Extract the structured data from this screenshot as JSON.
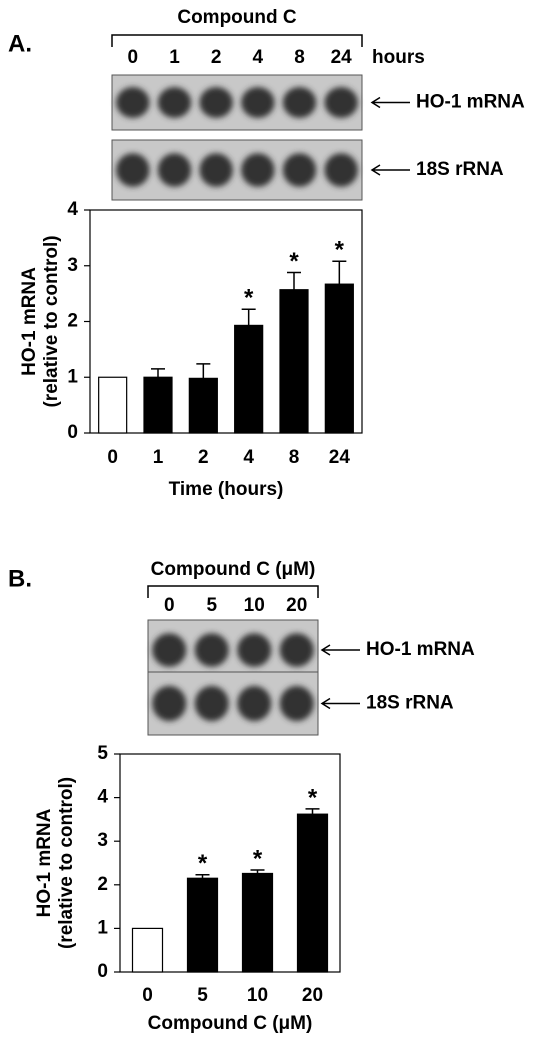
{
  "chart_data": [
    {
      "type": "bar",
      "panel_label": "A.",
      "ylabel": [
        "HO-1 mRNA",
        "(relative to control)"
      ],
      "xlabel": "Time (hours)",
      "categories": [
        "0",
        "1",
        "2",
        "4",
        "8",
        "24"
      ],
      "values": [
        1,
        1,
        0.98,
        1.93,
        2.57,
        2.67
      ],
      "errors": [
        null,
        0.15,
        0.26,
        0.29,
        0.31,
        0.41
      ],
      "markers": [
        null,
        null,
        null,
        "*",
        "*",
        "*"
      ],
      "colors": [
        "#ffffff",
        "#000000",
        "#000000",
        "#000000",
        "#000000",
        "#000000"
      ],
      "ylim": [
        0,
        4
      ],
      "yticks": [
        0,
        1,
        2,
        3,
        4
      ]
    },
    {
      "type": "bar",
      "panel_label": "B.",
      "ylabel": [
        "HO-1 mRNA",
        "(relative to control)"
      ],
      "xlabel": "Compound C (μM)",
      "categories": [
        "0",
        "5",
        "10",
        "20"
      ],
      "values": [
        1,
        2.15,
        2.26,
        3.62
      ],
      "errors": [
        null,
        0.08,
        0.08,
        0.12
      ],
      "markers": [
        null,
        "*",
        "*",
        "*"
      ],
      "colors": [
        "#ffffff",
        "#000000",
        "#000000",
        "#000000"
      ],
      "ylim": [
        0,
        5
      ],
      "yticks": [
        0,
        1,
        2,
        3,
        4,
        5
      ]
    }
  ],
  "blots": [
    {
      "title": "Compound C",
      "lanes": [
        "0",
        "1",
        "2",
        "4",
        "8",
        "24"
      ],
      "unit": "hours",
      "bands": [
        "HO-1 mRNA",
        "18S rRNA"
      ]
    },
    {
      "title": "Compound C (μM)",
      "lanes": [
        "0",
        "5",
        "10",
        "20"
      ],
      "bands": [
        "HO-1 mRNA",
        "18S rRNA"
      ]
    }
  ]
}
